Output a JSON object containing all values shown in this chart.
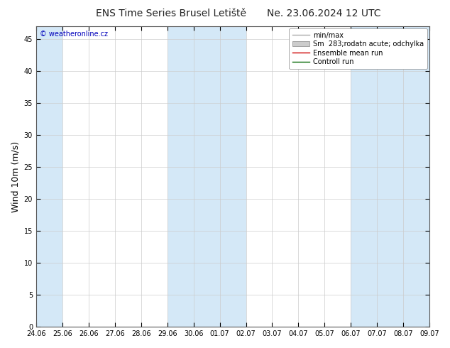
{
  "title": "ENS Time Series Brusel Letiště",
  "title_right": "Ne. 23.06.2024 12 UTC",
  "ylabel": "Wind 10m (m/s)",
  "watermark": "© weatheronline.cz",
  "xlabels": [
    "24.06",
    "25.06",
    "26.06",
    "27.06",
    "28.06",
    "29.06",
    "30.06",
    "01.07",
    "02.07",
    "03.07",
    "04.07",
    "05.07",
    "06.07",
    "07.07",
    "08.07",
    "09.07"
  ],
  "ylim": [
    0,
    47
  ],
  "yticks": [
    0,
    5,
    10,
    15,
    20,
    25,
    30,
    35,
    40,
    45
  ],
  "plot_bg": "#ffffff",
  "shade_bg": "#d4e8f7",
  "legend_items": [
    {
      "label": "min/max",
      "color": "#aaaaaa",
      "lw": 1.0,
      "style": "line"
    },
    {
      "label": "Sm  283;rodatn acute; odchylka",
      "color": "#cccccc",
      "style": "fill"
    },
    {
      "label": "Ensemble mean run",
      "color": "#cc0000",
      "lw": 1.0,
      "style": "line"
    },
    {
      "label": "Controll run",
      "color": "#006600",
      "lw": 1.0,
      "style": "line"
    }
  ],
  "shade_cols_idx": [
    0,
    6,
    7,
    13,
    14,
    15
  ],
  "n_days": 16,
  "title_fontsize": 10,
  "tick_fontsize": 7,
  "legend_fontsize": 7,
  "ylabel_fontsize": 9
}
